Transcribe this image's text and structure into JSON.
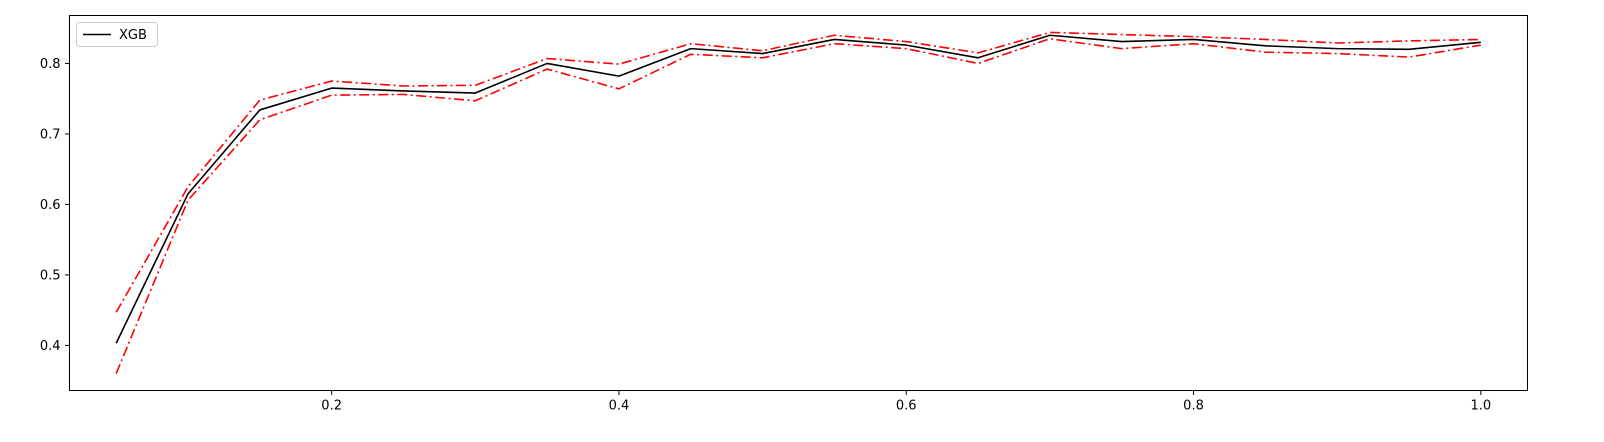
{
  "chart_data": {
    "type": "line",
    "title": "",
    "xlabel": "",
    "ylabel": "",
    "xlim": [
      0.0175,
      1.0325
    ],
    "ylim": [
      0.336,
      0.868
    ],
    "x_ticks": [
      0.2,
      0.4,
      0.6,
      0.8,
      1.0
    ],
    "x_tick_labels": [
      "0.2",
      "0.4",
      "0.6",
      "0.8",
      "1.0"
    ],
    "y_ticks": [
      0.4,
      0.5,
      0.6,
      0.7,
      0.8
    ],
    "y_tick_labels": [
      "0.4",
      "0.5",
      "0.6",
      "0.7",
      "0.8"
    ],
    "grid": false,
    "legend": {
      "position": "top-left",
      "entries": [
        "XGB"
      ]
    },
    "x": [
      0.05,
      0.1,
      0.15,
      0.2,
      0.25,
      0.3,
      0.35,
      0.4,
      0.45,
      0.5,
      0.55,
      0.6,
      0.65,
      0.7,
      0.75,
      0.8,
      0.85,
      0.9,
      0.95,
      1.0
    ],
    "series": [
      {
        "name": "XGB",
        "color": "#000000",
        "style": "solid",
        "values": [
          0.403,
          0.615,
          0.734,
          0.765,
          0.761,
          0.758,
          0.8,
          0.782,
          0.821,
          0.814,
          0.834,
          0.826,
          0.808,
          0.84,
          0.831,
          0.834,
          0.825,
          0.821,
          0.82,
          0.83
        ]
      },
      {
        "color": "#ff0000",
        "style": "dashdot",
        "values": [
          0.447,
          0.625,
          0.748,
          0.775,
          0.768,
          0.769,
          0.807,
          0.799,
          0.828,
          0.818,
          0.84,
          0.831,
          0.815,
          0.844,
          0.841,
          0.838,
          0.834,
          0.829,
          0.832,
          0.834
        ]
      },
      {
        "color": "#ff0000",
        "style": "dashdot",
        "values": [
          0.36,
          0.606,
          0.72,
          0.755,
          0.756,
          0.747,
          0.792,
          0.764,
          0.813,
          0.808,
          0.828,
          0.821,
          0.8,
          0.835,
          0.821,
          0.828,
          0.816,
          0.814,
          0.809,
          0.826
        ]
      }
    ]
  }
}
